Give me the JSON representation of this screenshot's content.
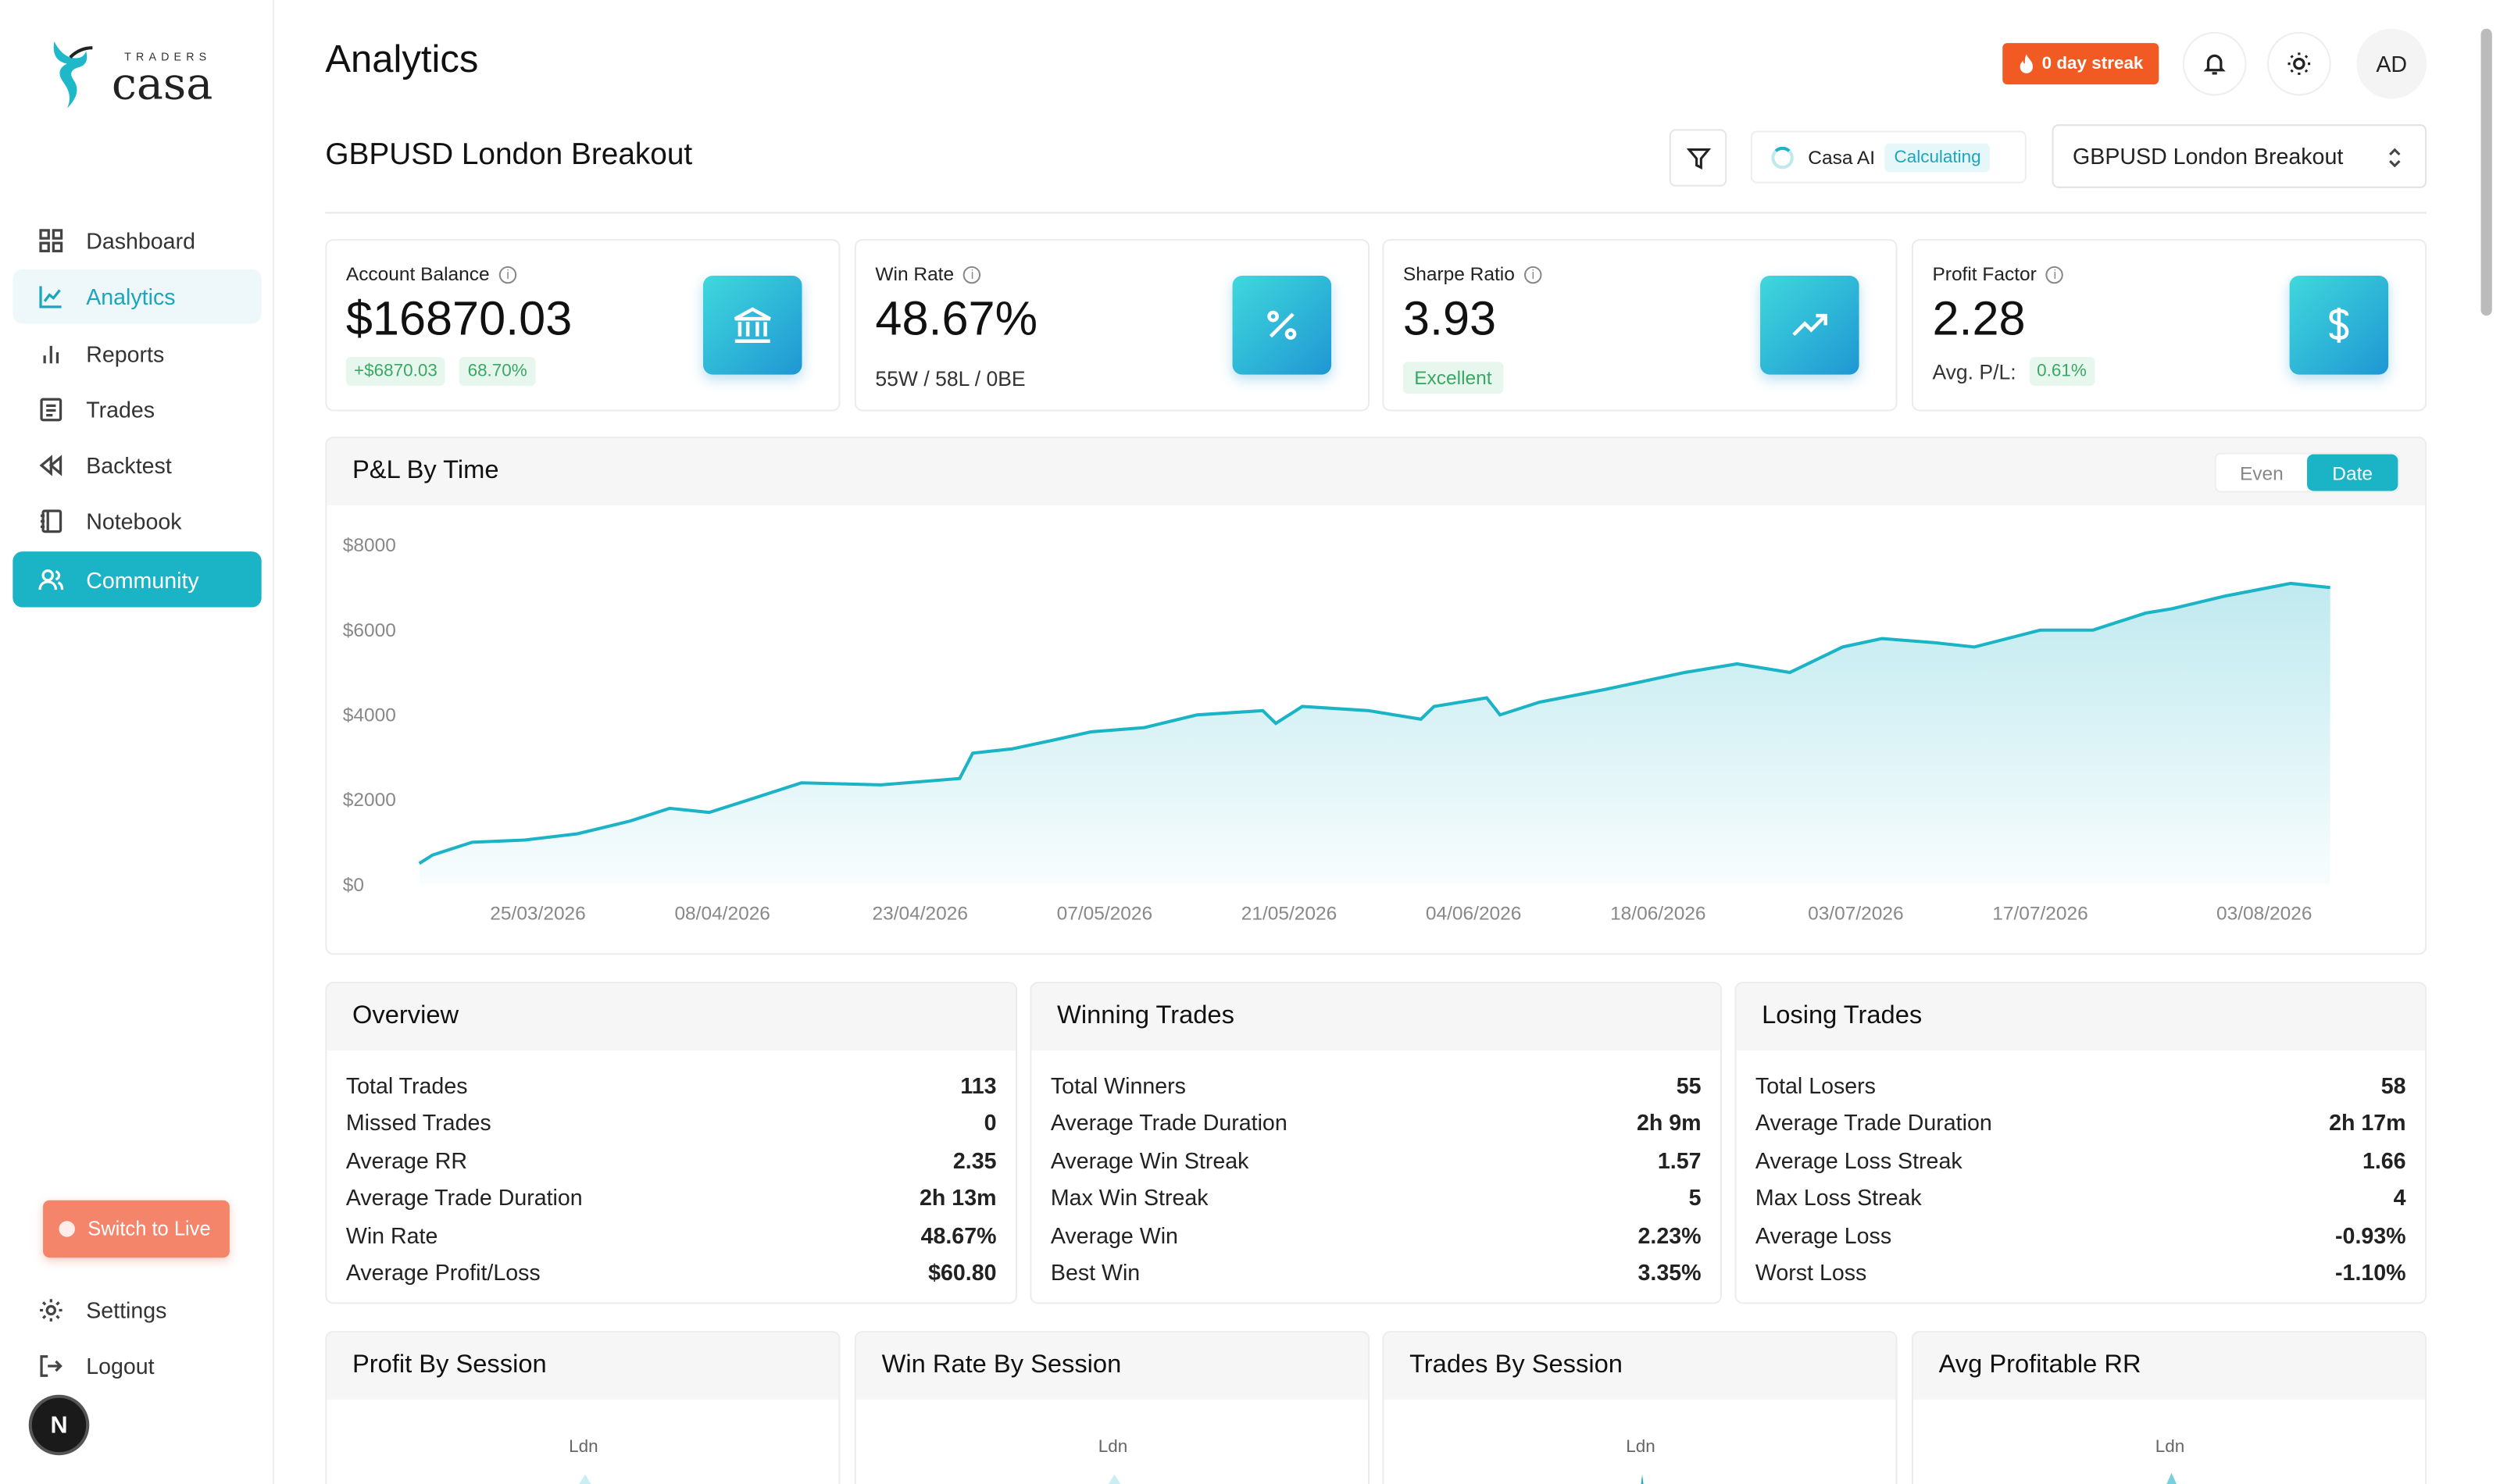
{
  "brand": {
    "top": "TRADERS",
    "name": "casa"
  },
  "sidebar": {
    "items": [
      {
        "label": "Dashboard",
        "icon": "grid-icon"
      },
      {
        "label": "Analytics",
        "icon": "line-chart-icon"
      },
      {
        "label": "Reports",
        "icon": "bar-chart-icon"
      },
      {
        "label": "Trades",
        "icon": "list-icon"
      },
      {
        "label": "Backtest",
        "icon": "rewind-icon"
      },
      {
        "label": "Notebook",
        "icon": "notebook-icon"
      },
      {
        "label": "Community",
        "icon": "users-icon"
      }
    ],
    "switch_label": "Switch to Live",
    "settings": "Settings",
    "logout": "Logout",
    "badge": "N"
  },
  "header": {
    "title": "Analytics",
    "streak": "0 day streak",
    "avatar": "AD"
  },
  "strategy": {
    "title": "GBPUSD London Breakout",
    "casa_ai": "Casa AI",
    "status": "Calculating",
    "selected": "GBPUSD London Breakout"
  },
  "stats": [
    {
      "label": "Account Balance",
      "value": "$16870.03",
      "chip1": "+$6870.03",
      "chip2": "68.70%",
      "icon": "bank-icon"
    },
    {
      "label": "Win Rate",
      "value": "48.67%",
      "sub": "55W / 58L / 0BE",
      "icon": "percent-icon"
    },
    {
      "label": "Sharpe Ratio",
      "value": "3.93",
      "chip": "Excellent",
      "icon": "trending-up-icon"
    },
    {
      "label": "Profit Factor",
      "value": "2.28",
      "sub": "Avg. P/L:",
      "chip": "0.61%",
      "icon": "dollar-icon"
    }
  ],
  "pnl": {
    "title": "P&L By Time",
    "toggle": [
      "Even",
      "Date"
    ]
  },
  "chart_data": {
    "type": "area",
    "title": "P&L By Time",
    "y_ticks": [
      "$8000",
      "$6000",
      "$4000",
      "$2000",
      "$0"
    ],
    "x_ticks": [
      "25/03/2026",
      "08/04/2026",
      "23/04/2026",
      "07/05/2026",
      "21/05/2026",
      "04/06/2026",
      "18/06/2026",
      "03/07/2026",
      "17/07/2026",
      "03/08/2026"
    ],
    "ylim": [
      0,
      8000
    ],
    "x_range": [
      "16/03/2026",
      "10/08/2026"
    ],
    "series": [
      {
        "x": [
          "16/03/2026",
          "17/03/2026",
          "20/03/2026",
          "24/03/2026",
          "28/03/2026",
          "01/04/2026",
          "04/04/2026",
          "07/04/2026",
          "10/04/2026",
          "14/04/2026",
          "20/04/2026",
          "26/04/2026",
          "27/04/2026",
          "30/04/2026",
          "03/05/2026",
          "06/05/2026",
          "10/05/2026",
          "14/05/2026",
          "19/05/2026",
          "20/05/2026",
          "22/05/2026",
          "27/05/2026",
          "31/05/2026",
          "01/06/2026",
          "05/06/2026",
          "06/06/2026",
          "09/06/2026",
          "14/06/2026",
          "17/06/2026",
          "20/06/2026",
          "24/06/2026",
          "28/06/2026",
          "02/07/2026",
          "05/07/2026",
          "09/07/2026",
          "12/07/2026",
          "17/07/2026",
          "21/07/2026",
          "25/07/2026",
          "27/07/2026",
          "31/07/2026",
          "05/08/2026",
          "08/08/2026"
        ],
        "values": [
          500,
          700,
          1000,
          1050,
          1200,
          1500,
          1800,
          1700,
          2000,
          2400,
          2350,
          2500,
          3100,
          3200,
          3400,
          3600,
          3700,
          4000,
          4100,
          3800,
          4200,
          4100,
          3900,
          4200,
          4400,
          4000,
          4300,
          4600,
          4800,
          5000,
          5200,
          5000,
          5600,
          5800,
          5700,
          5600,
          6000,
          6000,
          6400,
          6500,
          6800,
          7100,
          7000
        ]
      }
    ]
  },
  "overview": {
    "title": "Overview",
    "rows": [
      {
        "k": "Total Trades",
        "v": "113"
      },
      {
        "k": "Missed Trades",
        "v": "0"
      },
      {
        "k": "Average RR",
        "v": "2.35"
      },
      {
        "k": "Average Trade Duration",
        "v": "2h 13m"
      },
      {
        "k": "Win Rate",
        "v": "48.67%"
      },
      {
        "k": "Average Profit/Loss",
        "v": "$60.80"
      }
    ]
  },
  "winning": {
    "title": "Winning Trades",
    "rows": [
      {
        "k": "Total Winners",
        "v": "55"
      },
      {
        "k": "Average Trade Duration",
        "v": "2h 9m"
      },
      {
        "k": "Average Win Streak",
        "v": "1.57"
      },
      {
        "k": "Max Win Streak",
        "v": "5"
      },
      {
        "k": "Average Win",
        "v": "2.23%"
      },
      {
        "k": "Best Win",
        "v": "3.35%"
      }
    ]
  },
  "losing": {
    "title": "Losing Trades",
    "rows": [
      {
        "k": "Total Losers",
        "v": "58"
      },
      {
        "k": "Average Trade Duration",
        "v": "2h 17m"
      },
      {
        "k": "Average Loss Streak",
        "v": "1.66"
      },
      {
        "k": "Max Loss Streak",
        "v": "4"
      },
      {
        "k": "Average Loss",
        "v": "-0.93%"
      },
      {
        "k": "Worst Loss",
        "v": "-1.10%"
      }
    ]
  },
  "sessions": [
    {
      "title": "Profit By Session",
      "label": "Ldn"
    },
    {
      "title": "Win Rate By Session",
      "label": "Ldn"
    },
    {
      "title": "Trades By Session",
      "label": "Ldn"
    },
    {
      "title": "Avg Profitable RR",
      "label": "Ldn"
    }
  ]
}
